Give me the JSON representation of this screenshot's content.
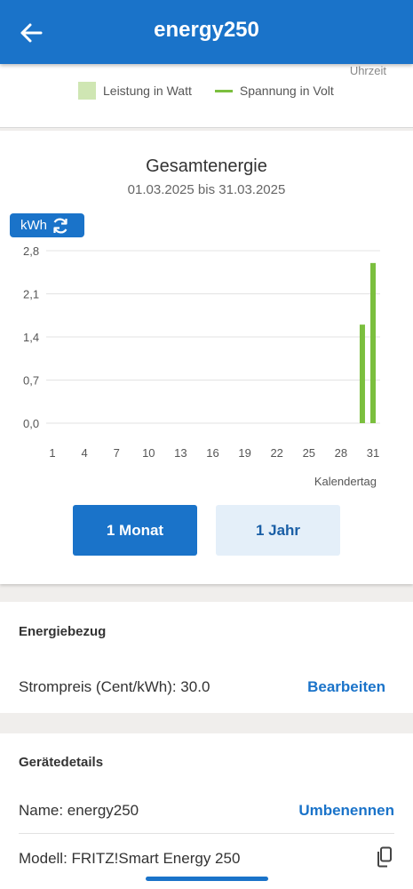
{
  "header": {
    "title": "energy250",
    "back_icon": "arrow-left-icon"
  },
  "legend_section": {
    "axis_caption": "Uhrzeit",
    "legend": [
      {
        "label": "Leistung in Watt",
        "color": "#cfe6b3",
        "kind": "box"
      },
      {
        "label": "Spannung in Volt",
        "color": "#7bbf3e",
        "kind": "line"
      }
    ]
  },
  "energy_chart": {
    "title": "Gesamtenergie",
    "date_range": "01.03.2025 bis 31.03.2025",
    "unit_toggle": {
      "label": "kWh",
      "icon": "refresh-icon"
    },
    "period_buttons": [
      {
        "label": "1 Monat",
        "active": true
      },
      {
        "label": "1 Jahr",
        "active": false
      }
    ]
  },
  "chart_data": {
    "type": "bar",
    "xlabel": "Kalendertag",
    "ylabel": "kWh",
    "ylim": [
      0,
      2.8
    ],
    "y_ticks": [
      "0,0",
      "0,7",
      "1,4",
      "2,1",
      "2,8"
    ],
    "x_ticks": [
      "1",
      "4",
      "7",
      "10",
      "13",
      "16",
      "19",
      "22",
      "25",
      "28",
      "31"
    ],
    "x_range": [
      1,
      31
    ],
    "bar_color": "#7bbf3e",
    "points": [
      {
        "x": 30,
        "y": 1.6
      },
      {
        "x": 31,
        "y": 2.6
      }
    ],
    "grid": true
  },
  "energy_supply": {
    "title": "Energiebezug",
    "price_label": "Strompreis (Cent/kWh): 30.0",
    "edit_label": "Bearbeiten"
  },
  "device_details": {
    "title": "Gerätedetails",
    "name_label": "Name:  energy250",
    "rename_label": "Umbenennen",
    "model_label": "Modell: FRITZ!Smart Energy 250",
    "copy_icon": "copy-icon"
  },
  "colors": {
    "accent": "#1a73c9",
    "bar": "#7bbf3e",
    "legend_box": "#cfe6b3"
  }
}
